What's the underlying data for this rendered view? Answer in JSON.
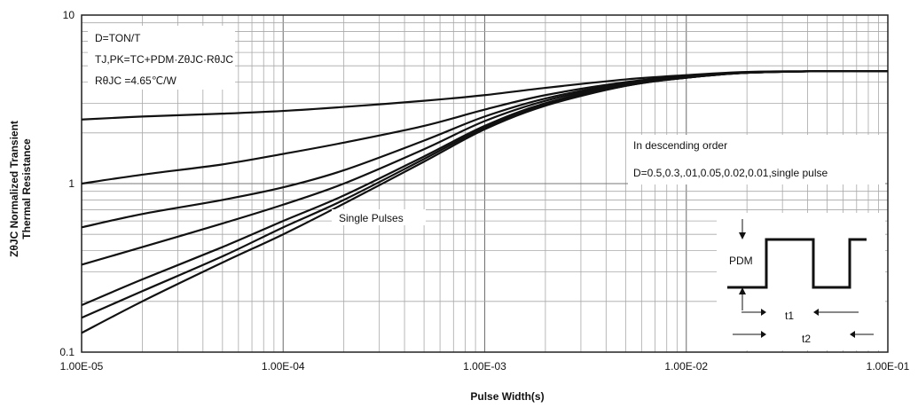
{
  "chart_data": {
    "type": "line",
    "x_scale": "log",
    "y_scale": "log",
    "xlim": [
      1e-05,
      0.1
    ],
    "ylim": [
      0.1,
      10
    ],
    "x_ticks": [
      1e-05,
      0.0001,
      0.001,
      0.01,
      0.1
    ],
    "x_tick_labels": [
      "1.00E-05",
      "1.00E-04",
      "1.00E-03",
      "1.00E-02",
      "1.00E-01"
    ],
    "y_ticks": [
      0.1,
      1,
      10
    ],
    "y_tick_labels": [
      "0.1",
      "1",
      "10"
    ],
    "xlabel": "Pulse Width(s)",
    "ylabel_line1": "ZθJC Normalized Transient",
    "ylabel_line2": "Thermal Resistance",
    "grid": true,
    "x": [
      1e-05,
      2e-05,
      5e-05,
      0.0001,
      0.0002,
      0.0005,
      0.001,
      0.002,
      0.005,
      0.01,
      0.02,
      0.05,
      0.1
    ],
    "series": [
      {
        "values": [
          2.4,
          2.5,
          2.6,
          2.7,
          2.85,
          3.1,
          3.35,
          3.7,
          4.15,
          4.4,
          4.6,
          4.65,
          4.65
        ]
      },
      {
        "values": [
          1.0,
          1.13,
          1.3,
          1.5,
          1.75,
          2.2,
          2.75,
          3.35,
          4.0,
          4.35,
          4.55,
          4.65,
          4.65
        ]
      },
      {
        "values": [
          0.55,
          0.66,
          0.8,
          0.95,
          1.2,
          1.8,
          2.5,
          3.2,
          3.95,
          4.3,
          4.55,
          4.65,
          4.65
        ]
      },
      {
        "values": [
          0.33,
          0.42,
          0.58,
          0.75,
          1.0,
          1.6,
          2.35,
          3.1,
          3.9,
          4.3,
          4.55,
          4.65,
          4.65
        ]
      },
      {
        "values": [
          0.19,
          0.27,
          0.42,
          0.6,
          0.85,
          1.45,
          2.2,
          3.0,
          3.85,
          4.25,
          4.55,
          4.65,
          4.65
        ]
      },
      {
        "values": [
          0.16,
          0.23,
          0.37,
          0.55,
          0.8,
          1.4,
          2.15,
          2.95,
          3.8,
          4.25,
          4.55,
          4.65,
          4.65
        ]
      },
      {
        "values": [
          0.13,
          0.2,
          0.34,
          0.5,
          0.76,
          1.35,
          2.1,
          2.9,
          3.8,
          4.25,
          4.55,
          4.65,
          4.65
        ]
      }
    ],
    "annotations": {
      "box_line1": "D=TON/T",
      "box_line2": "TJ,PK=TC+PDM·ZθJC·RθJC",
      "box_line3": "RθJC =4.65℃/W",
      "order_line1": "In descending order",
      "order_line2": "D=0.5,0.3,.01,0.05,0.02,0.01,single  pulse",
      "single_pulses": "Single Pulses"
    },
    "pulse_inset": {
      "pdm_label": "PDM",
      "t1_label": "t1",
      "t2_label": "t2"
    }
  }
}
